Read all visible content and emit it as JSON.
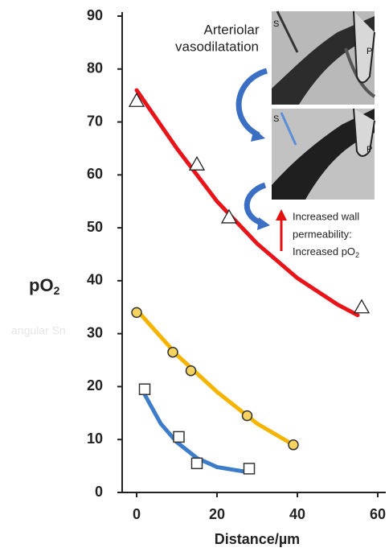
{
  "chart_data": {
    "type": "scatter-fit",
    "x_label": "Distance/µm",
    "y_label": "pO",
    "y_label_sub": "2",
    "xlim": [
      -3.6,
      62
    ],
    "xticks": [
      0,
      20,
      40,
      60
    ],
    "ylim": [
      0,
      90
    ],
    "yticks": [
      0,
      10,
      20,
      30,
      40,
      50,
      60,
      70,
      80,
      90
    ],
    "series": [
      {
        "marker": "triangle",
        "color": "#ffffff",
        "fit_color": "#e8141a",
        "x": [
          0,
          15,
          23,
          56
        ],
        "values": [
          74,
          62,
          52,
          35
        ],
        "fit_x": [
          0,
          10,
          20,
          30,
          40,
          50,
          55
        ],
        "fit_values": [
          76,
          65,
          55,
          47,
          40.5,
          35.5,
          33.5
        ]
      },
      {
        "marker": "circle",
        "color": "#f4d35e",
        "fit_color": "#f5b400",
        "x": [
          0,
          9,
          13.5,
          27.5,
          39
        ],
        "values": [
          34,
          26.5,
          23,
          14.5,
          9
        ],
        "fit_x": [
          0,
          10,
          20,
          30,
          39
        ],
        "fit_values": [
          34.5,
          26,
          19,
          13,
          9
        ]
      },
      {
        "marker": "square",
        "color": "#ffffff",
        "fit_color": "#3d7cc9",
        "x": [
          2,
          10.5,
          15,
          28
        ],
        "values": [
          19.5,
          10.5,
          5.5,
          4.5
        ],
        "fit_x": [
          2,
          6,
          10,
          15,
          20,
          28
        ],
        "fit_values": [
          18.5,
          13,
          9.5,
          6.5,
          4.8,
          3.8
        ]
      }
    ],
    "annotations": {
      "inset_title": [
        "Arteriolar",
        "vasodilatation"
      ],
      "probe_s": "S",
      "probe_p": "P",
      "permeability": [
        "Increased wall",
        "permeability:",
        "Increased pO"
      ],
      "permeability_sub": "2",
      "watermark": "angular Sn"
    }
  }
}
